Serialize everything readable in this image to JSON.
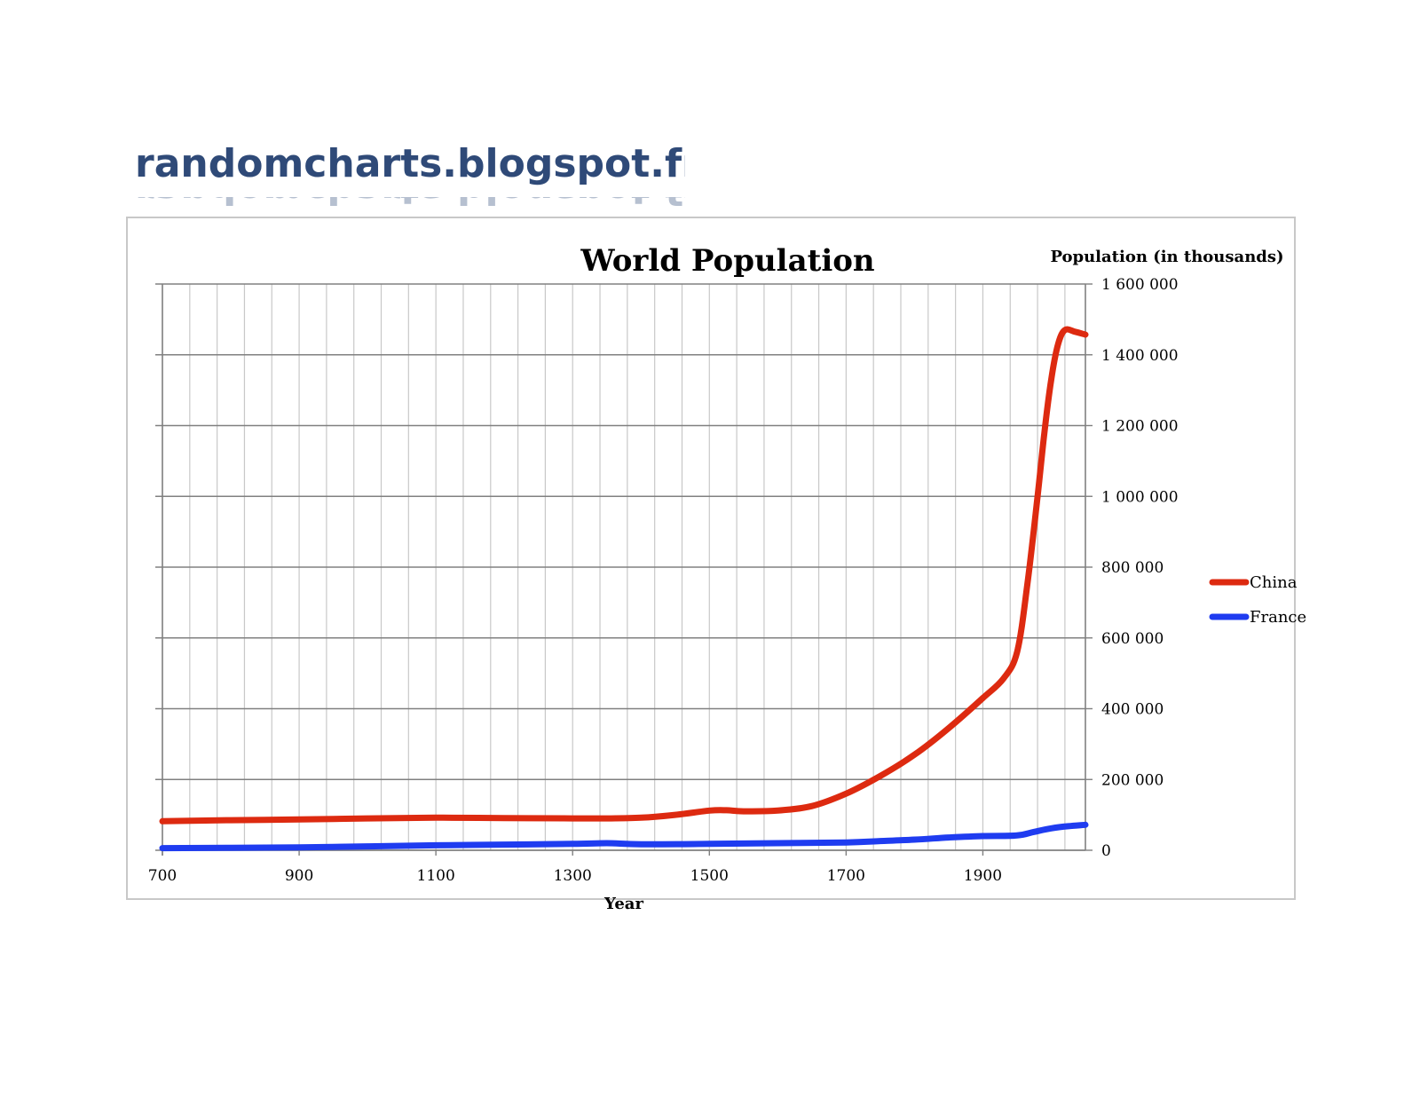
{
  "watermark": {
    "text": "randomcharts.blogspot.fr"
  },
  "colors": {
    "china": "#dd2a10",
    "france": "#1f3cf0",
    "grid": "#c8c8c8",
    "axis": "#808080",
    "watermark": "#2f4a78"
  },
  "chart_data": {
    "type": "line",
    "title": "World Population",
    "xlabel": "Year",
    "ylabel": "Population (in thousands)",
    "xlim": [
      700,
      2050
    ],
    "ylim": [
      0,
      1600000
    ],
    "x_ticks": [
      700,
      900,
      1100,
      1300,
      1500,
      1700,
      1900
    ],
    "x_tick_labels": [
      "700",
      "900",
      "1100",
      "1300",
      "1500",
      "1700",
      "1900"
    ],
    "x_grid_step": 40,
    "y_ticks": [
      0,
      200000,
      400000,
      600000,
      800000,
      1000000,
      1200000,
      1400000,
      1600000
    ],
    "y_tick_labels": [
      "0",
      "200 000",
      "400 000",
      "600 000",
      "800 000",
      "1 000 000",
      "1 200 000",
      "1 400 000",
      "1 600 000"
    ],
    "y_axis_position": "right",
    "grid": true,
    "legend_position": "right",
    "series": [
      {
        "name": "China",
        "points": [
          [
            700,
            82000
          ],
          [
            800,
            85000
          ],
          [
            900,
            87000
          ],
          [
            1000,
            90000
          ],
          [
            1100,
            92000
          ],
          [
            1200,
            91000
          ],
          [
            1300,
            90000
          ],
          [
            1350,
            90000
          ],
          [
            1400,
            92000
          ],
          [
            1450,
            100000
          ],
          [
            1500,
            112000
          ],
          [
            1525,
            113000
          ],
          [
            1550,
            110000
          ],
          [
            1600,
            112000
          ],
          [
            1650,
            125000
          ],
          [
            1700,
            160000
          ],
          [
            1750,
            210000
          ],
          [
            1800,
            270000
          ],
          [
            1850,
            345000
          ],
          [
            1900,
            430000
          ],
          [
            1930,
            485000
          ],
          [
            1950,
            560000
          ],
          [
            1965,
            750000
          ],
          [
            1980,
            1000000
          ],
          [
            1990,
            1180000
          ],
          [
            2000,
            1330000
          ],
          [
            2010,
            1430000
          ],
          [
            2020,
            1470000
          ],
          [
            2035,
            1465000
          ],
          [
            2050,
            1457000
          ]
        ]
      },
      {
        "name": "France",
        "points": [
          [
            700,
            6000
          ],
          [
            800,
            7000
          ],
          [
            900,
            8000
          ],
          [
            1000,
            11000
          ],
          [
            1100,
            14000
          ],
          [
            1200,
            16000
          ],
          [
            1300,
            18000
          ],
          [
            1350,
            20000
          ],
          [
            1400,
            17000
          ],
          [
            1500,
            18000
          ],
          [
            1600,
            20000
          ],
          [
            1700,
            22000
          ],
          [
            1750,
            26000
          ],
          [
            1800,
            30000
          ],
          [
            1850,
            36000
          ],
          [
            1900,
            40000
          ],
          [
            1950,
            42000
          ],
          [
            1975,
            52000
          ],
          [
            2000,
            62000
          ],
          [
            2025,
            68000
          ],
          [
            2050,
            72000
          ]
        ]
      }
    ]
  }
}
